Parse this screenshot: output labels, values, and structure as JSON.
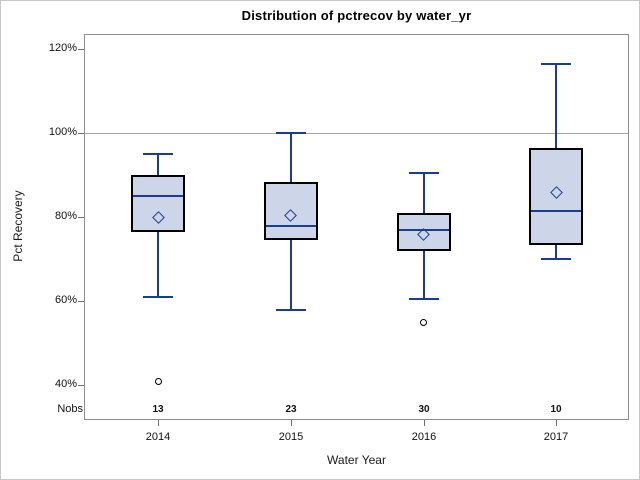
{
  "chart_data": {
    "type": "box",
    "title": "Distribution of pctrecov by water_yr",
    "xlabel": "Water Year",
    "ylabel": "Pct Recovery",
    "categories": [
      "2014",
      "2015",
      "2016",
      "2017"
    ],
    "nobs_label": "Nobs",
    "nobs": [
      "13",
      "23",
      "30",
      "10"
    ],
    "y_ticks": [
      40,
      60,
      80,
      100,
      120
    ],
    "y_tick_labels": [
      "40%",
      "60%",
      "80%",
      "100%",
      "120%"
    ],
    "ylim": [
      31.5,
      123.5
    ],
    "reference_line": 100,
    "grid": "horizontal reference line at 100% only",
    "legend": "none",
    "series": [
      {
        "category": "2014",
        "n": 13,
        "whisker_low": 61,
        "q1": 76.5,
        "median": 85,
        "q3": 90,
        "whisker_high": 95,
        "mean": 80,
        "outliers": [
          41
        ]
      },
      {
        "category": "2015",
        "n": 23,
        "whisker_low": 58,
        "q1": 74.5,
        "median": 78,
        "q3": 88.5,
        "whisker_high": 100,
        "mean": 80.5,
        "outliers": []
      },
      {
        "category": "2016",
        "n": 30,
        "whisker_low": 60.5,
        "q1": 72,
        "median": 77,
        "q3": 81,
        "whisker_high": 90.5,
        "mean": 76,
        "outliers": [
          55
        ]
      },
      {
        "category": "2017",
        "n": 10,
        "whisker_low": 70,
        "q1": 73.5,
        "median": 81.5,
        "q3": 96.5,
        "whisker_high": 116.5,
        "mean": 86,
        "outliers": []
      }
    ],
    "colors": {
      "box_fill": "#ccd6e8",
      "box_border": "#000000",
      "line": "#1a3b96",
      "outlier_stroke": "#000000",
      "reference_line": "#a6a6a6",
      "plot_border": "#8c8c8c",
      "tick": "#6f6f6f"
    }
  }
}
